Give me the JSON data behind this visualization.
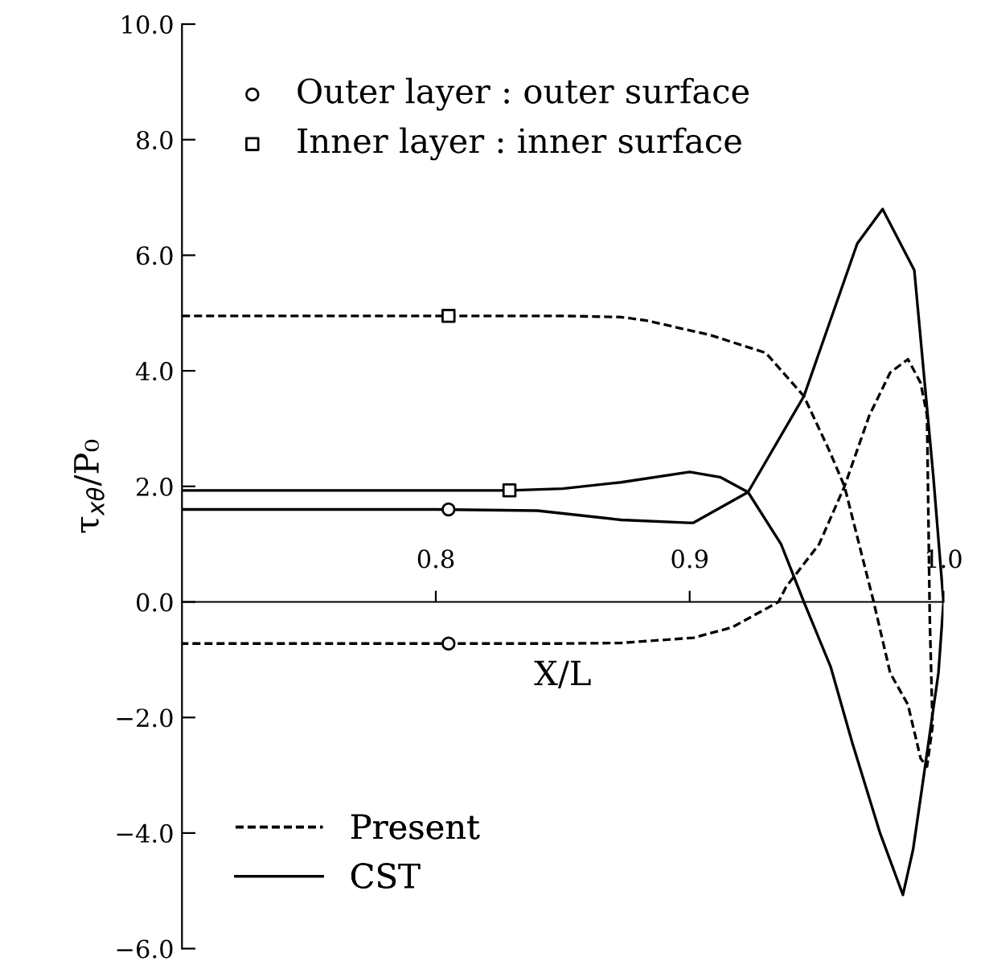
{
  "chart_data": {
    "type": "line",
    "xlabel": "X/L",
    "ylabel": "τ$_{xθ}$/P₀",
    "xlim": [
      0.7,
      1.0
    ],
    "ylim": [
      -6,
      10
    ],
    "xticks": [
      0.8,
      0.9,
      {
        "value": 1.0,
        "label": "1.0"
      }
    ],
    "yticks": [
      {
        "value": -6,
        "label": "−6.0"
      },
      {
        "value": -4,
        "label": "−4.0"
      },
      {
        "value": -2,
        "label": "−2.0"
      },
      {
        "value": 0,
        "label": "0.0"
      },
      {
        "value": 2,
        "label": "2.0"
      },
      {
        "value": 4,
        "label": "4.0"
      },
      {
        "value": 6,
        "label": "6.0"
      },
      {
        "value": 8,
        "label": "8.0"
      },
      {
        "value": 10,
        "label": "10.0"
      }
    ],
    "grid": false,
    "legend": [
      "top left",
      "bottom left"
    ],
    "series": [
      {
        "name": "Present",
        "line_style": "dashed",
        "color": "#000000",
        "x": [
          0.7,
          0.8,
          0.85,
          0.873,
          0.883,
          0.908,
          0.93,
          0.945,
          0.955,
          0.961,
          0.9725,
          0.979,
          0.986,
          0.991,
          0.9935,
          0.9957,
          0.9946,
          0.9935,
          0.991,
          0.986,
          0.979,
          0.9708,
          0.961,
          0.951,
          0.938,
          0.935,
          0.9167,
          0.9015,
          0.873,
          0.85,
          0.8,
          0.7
        ],
        "values": [
          4.95,
          4.95,
          4.95,
          4.93,
          4.87,
          4.62,
          4.31,
          3.56,
          2.62,
          2.0,
          0.0,
          -1.23,
          -1.78,
          -2.71,
          -2.85,
          -2.15,
          -0.3,
          3.23,
          3.79,
          4.2,
          3.97,
          3.23,
          2.0,
          1.0,
          0.26,
          0.0,
          -0.44,
          -0.62,
          -0.71,
          -0.72,
          -0.72,
          -0.72
        ]
      },
      {
        "name": "CST",
        "line_style": "solid",
        "color": "#000000",
        "x": [
          0.7,
          0.8,
          0.84,
          0.873,
          0.8997,
          0.9015,
          0.923,
          0.945,
          0.966,
          0.976,
          0.9885,
          0.996,
          1.0,
          0.998,
          0.992,
          0.988,
          0.984,
          0.975,
          0.964,
          0.9556,
          0.945,
          0.936,
          0.923,
          0.912,
          0.9,
          0.873,
          0.85,
          0.829,
          0.8,
          0.7
        ],
        "values": [
          1.6,
          1.6,
          1.58,
          1.42,
          1.37,
          1.37,
          1.9,
          3.56,
          6.2,
          6.8,
          5.74,
          2.17,
          0.0,
          -1.23,
          -3.08,
          -4.29,
          -5.07,
          -4.0,
          -2.43,
          -1.13,
          0.0,
          1.0,
          1.9,
          2.16,
          2.25,
          2.07,
          1.96,
          1.93,
          1.93,
          1.93
        ]
      },
      {
        "name": "Outer layer : outer surface",
        "type": "scatter",
        "marker": "circle",
        "color": "#000000",
        "x": [
          0.805,
          0.805
        ],
        "values": [
          1.6,
          -0.72
        ]
      },
      {
        "name": "Inner layer : inner surface",
        "type": "scatter",
        "marker": "square",
        "color": "#000000",
        "x": [
          0.805,
          0.829
        ],
        "values": [
          4.95,
          1.93
        ]
      }
    ]
  }
}
